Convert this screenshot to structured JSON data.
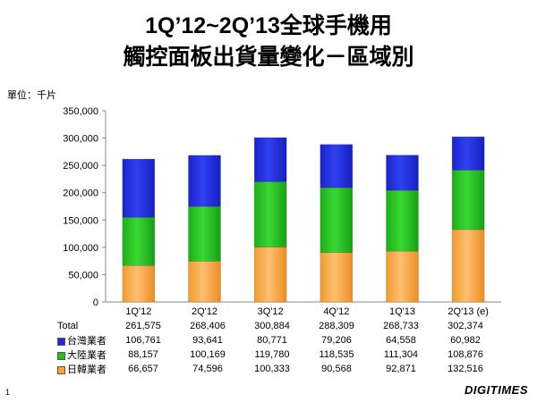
{
  "title_line1": "1Q’12~2Q’13全球手機用",
  "title_line2": "觸控面板出貨量變化－區域別",
  "unit_label": "單位：千片",
  "page_number": "1",
  "brand": "DIGITIMES",
  "chart_data": {
    "type": "bar",
    "stacked": true,
    "categories": [
      "1Q'12",
      "2Q'12",
      "3Q'12",
      "4Q'12",
      "1Q'13",
      "2Q'13 (e)"
    ],
    "ylim": [
      0,
      350000
    ],
    "yticks": [
      "0",
      "50,000",
      "100,000",
      "150,000",
      "200,000",
      "250,000",
      "300,000",
      "350,000"
    ],
    "grid": false,
    "series": [
      {
        "name": "日韓業者",
        "color": "#f7a43a",
        "values": [
          66657,
          74596,
          100333,
          90568,
          92871,
          132516
        ],
        "labels": [
          "66,657",
          "74,596",
          "100,333",
          "90,568",
          "92,871",
          "132,516"
        ]
      },
      {
        "name": "大陸業者",
        "color": "#22c01c",
        "values": [
          88157,
          100169,
          119780,
          118535,
          111304,
          108876
        ],
        "labels": [
          "88,157",
          "100,169",
          "119,780",
          "118,535",
          "111,304",
          "108,876"
        ]
      },
      {
        "name": "台灣業者",
        "color": "#1e2ae0",
        "values": [
          106761,
          93641,
          80771,
          79206,
          64558,
          60982
        ],
        "labels": [
          "106,761",
          "93,641",
          "80,771",
          "79,206",
          "64,558",
          "60,982"
        ]
      }
    ],
    "total_label": "Total",
    "totals": [
      "261,575",
      "268,406",
      "300,884",
      "288,309",
      "268,733",
      "302,374"
    ]
  }
}
